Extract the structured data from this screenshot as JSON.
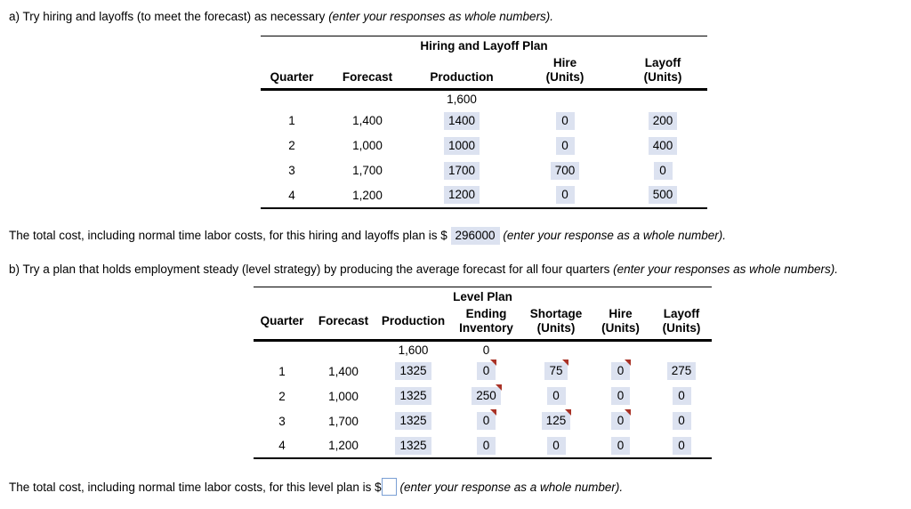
{
  "colors": {
    "input_bg": "#dce2f0",
    "flag_red": "#a93226",
    "empty_input_border": "#7a9fd4"
  },
  "section_a": {
    "intro": "a) Try hiring and layoffs (to meet the forecast) as necessary",
    "intro_note": "(enter your responses as whole numbers).",
    "table": {
      "title": "Hiring and Layoff Plan",
      "col_quarter": "Quarter",
      "col_forecast": "Forecast",
      "col_production": "Production",
      "col_hire_1": "Hire",
      "col_hire_2": "(Units)",
      "col_layoff_1": "Layoff",
      "col_layoff_2": "(Units)",
      "initial_production": "1,600",
      "rows": [
        {
          "quarter": "1",
          "forecast": "1,400",
          "production": "1400",
          "hire": "0",
          "layoff": "200"
        },
        {
          "quarter": "2",
          "forecast": "1,000",
          "production": "1000",
          "hire": "0",
          "layoff": "400"
        },
        {
          "quarter": "3",
          "forecast": "1,700",
          "production": "1700",
          "hire": "700",
          "layoff": "0"
        },
        {
          "quarter": "4",
          "forecast": "1,200",
          "production": "1200",
          "hire": "0",
          "layoff": "500"
        }
      ]
    },
    "total_prefix": "The total cost, including normal time labor costs, for this hiring and layoffs plan is $",
    "total_value": "296000",
    "total_note": "(enter your response as a whole number)."
  },
  "section_b": {
    "intro": "b) Try a plan that holds employment steady (level strategy) by producing the average forecast for all four quarters",
    "intro_note": "(enter your responses as whole numbers).",
    "table": {
      "title": "Level Plan",
      "col_quarter": "Quarter",
      "col_forecast": "Forecast",
      "col_production": "Production",
      "col_inventory_1": "Ending",
      "col_inventory_2": "Inventory",
      "col_shortage_1": "Shortage",
      "col_shortage_2": "(Units)",
      "col_hire_1": "Hire",
      "col_hire_2": "(Units)",
      "col_layoff_1": "Layoff",
      "col_layoff_2": "(Units)",
      "initial_production": "1,600",
      "initial_inventory": "0",
      "rows": [
        {
          "quarter": "1",
          "forecast": "1,400",
          "production": "1325",
          "inventory": "0",
          "shortage": "75",
          "hire": "0",
          "layoff": "275",
          "inventory_flagged": true,
          "shortage_flagged": true,
          "hire_flagged": true,
          "layoff_flagged": false
        },
        {
          "quarter": "2",
          "forecast": "1,000",
          "production": "1325",
          "inventory": "250",
          "shortage": "0",
          "hire": "0",
          "layoff": "0",
          "inventory_flagged": true,
          "shortage_flagged": false,
          "hire_flagged": false,
          "layoff_flagged": false
        },
        {
          "quarter": "3",
          "forecast": "1,700",
          "production": "1325",
          "inventory": "0",
          "shortage": "125",
          "hire": "0",
          "layoff": "0",
          "inventory_flagged": true,
          "shortage_flagged": true,
          "hire_flagged": true,
          "layoff_flagged": false
        },
        {
          "quarter": "4",
          "forecast": "1,200",
          "production": "1325",
          "inventory": "0",
          "shortage": "0",
          "hire": "0",
          "layoff": "0",
          "inventory_flagged": false,
          "shortage_flagged": false,
          "hire_flagged": false,
          "layoff_flagged": false
        }
      ]
    },
    "total_prefix": "The total cost, including normal time labor costs, for this level plan is $",
    "total_note": "(enter your response as a whole number)."
  }
}
